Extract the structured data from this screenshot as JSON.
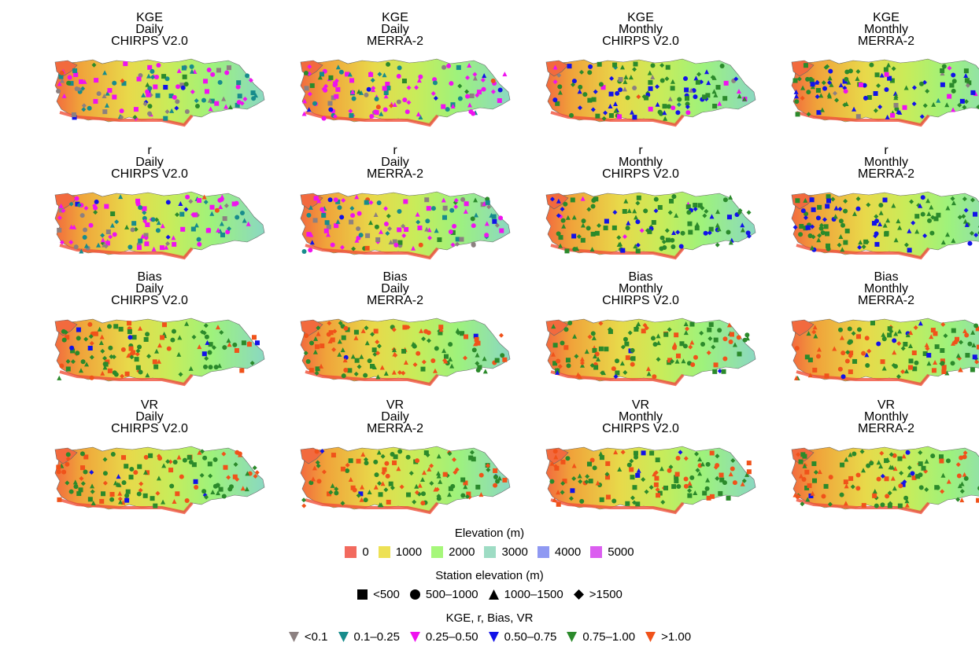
{
  "panels": [
    {
      "metric": "KGE",
      "timescale": "Daily",
      "product": "CHIRPS V2.0"
    },
    {
      "metric": "KGE",
      "timescale": "Daily",
      "product": "MERRA-2"
    },
    {
      "metric": "KGE",
      "timescale": "Monthly",
      "product": "CHIRPS V2.0"
    },
    {
      "metric": "KGE",
      "timescale": "Monthly",
      "product": "MERRA-2"
    },
    {
      "metric": "r",
      "timescale": "Daily",
      "product": "CHIRPS V2.0"
    },
    {
      "metric": "r",
      "timescale": "Daily",
      "product": "MERRA-2"
    },
    {
      "metric": "r",
      "timescale": "Monthly",
      "product": "CHIRPS V2.0"
    },
    {
      "metric": "r",
      "timescale": "Monthly",
      "product": "MERRA-2"
    },
    {
      "metric": "Bias",
      "timescale": "Daily",
      "product": "CHIRPS V2.0"
    },
    {
      "metric": "Bias",
      "timescale": "Daily",
      "product": "MERRA-2"
    },
    {
      "metric": "Bias",
      "timescale": "Monthly",
      "product": "CHIRPS V2.0"
    },
    {
      "metric": "Bias",
      "timescale": "Monthly",
      "product": "MERRA-2"
    },
    {
      "metric": "VR",
      "timescale": "Daily",
      "product": "CHIRPS V2.0"
    },
    {
      "metric": "VR",
      "timescale": "Daily",
      "product": "MERRA-2"
    },
    {
      "metric": "VR",
      "timescale": "Monthly",
      "product": "CHIRPS V2.0"
    },
    {
      "metric": "VR",
      "timescale": "Monthly",
      "product": "MERRA-2"
    }
  ],
  "legend_elevation": {
    "title": "Elevation (m)",
    "items": [
      {
        "label": "0",
        "color": "#f26a5e"
      },
      {
        "label": "1000",
        "color": "#ede155"
      },
      {
        "label": "2000",
        "color": "#a6f77a"
      },
      {
        "label": "3000",
        "color": "#9edcc4"
      },
      {
        "label": "4000",
        "color": "#8f99f2"
      },
      {
        "label": "5000",
        "color": "#db5ef0"
      }
    ]
  },
  "legend_station": {
    "title": "Station elevation (m)",
    "items": [
      {
        "label": "<500",
        "shape": "square"
      },
      {
        "label": "500–1000",
        "shape": "circle"
      },
      {
        "label": "1000–1500",
        "shape": "triangle"
      },
      {
        "label": ">1500",
        "shape": "diamond"
      }
    ]
  },
  "legend_metric": {
    "title": "KGE, r, Bias, VR",
    "items": [
      {
        "label": "<0.1",
        "color": "#8c8080"
      },
      {
        "label": "0.1–0.25",
        "color": "#178c8c"
      },
      {
        "label": "0.25–0.50",
        "color": "#ef12ef"
      },
      {
        "label": "0.50–0.75",
        "color": "#1212e8"
      },
      {
        "label": "0.75–1.00",
        "color": "#2b8a2b"
      },
      {
        "label": ">1.00",
        "color": "#f0521a"
      }
    ]
  }
}
